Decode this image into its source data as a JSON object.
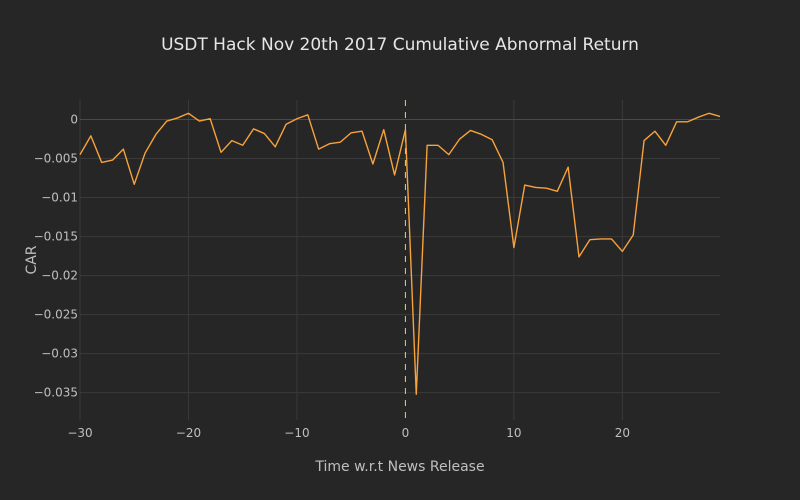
{
  "chart_data": {
    "type": "line",
    "title": "USDT Hack Nov 20th 2017 Cumulative Abnormal Return",
    "xlabel": "Time w.r.t News Release",
    "ylabel": "CAR",
    "xlim": [
      -30,
      29
    ],
    "ylim": [
      -0.0385,
      0.0025
    ],
    "x_ticks": [
      -30,
      -20,
      -10,
      0,
      10,
      20
    ],
    "x_tick_labels": [
      "−30",
      "−20",
      "−10",
      "0",
      "10",
      "20"
    ],
    "y_ticks": [
      0,
      -0.005,
      -0.01,
      -0.015,
      -0.02,
      -0.025,
      -0.03,
      -0.035
    ],
    "y_tick_labels": [
      "0",
      "−0.005",
      "−0.01",
      "−0.015",
      "−0.02",
      "−0.025",
      "−0.03",
      "−0.035"
    ],
    "grid": true,
    "series": [
      {
        "color": "#f7a23c",
        "x": [
          -30,
          -29,
          -28,
          -27,
          -26,
          -25,
          -24,
          -23,
          -22,
          -21,
          -20,
          -19,
          -18,
          -17,
          -16,
          -15,
          -14,
          -13,
          -12,
          -11,
          -10,
          -9,
          -8,
          -7,
          -6,
          -5,
          -4,
          -3,
          -2,
          -1,
          0,
          1,
          2,
          3,
          4,
          5,
          6,
          7,
          8,
          9,
          10,
          11,
          12,
          13,
          14,
          15,
          16,
          17,
          18,
          19,
          20,
          21,
          22,
          23,
          24,
          25,
          26,
          27,
          28,
          29
        ],
        "values": [
          -0.0045,
          -0.0021,
          -0.0055,
          -0.0052,
          -0.0038,
          -0.0083,
          -0.0043,
          -0.0019,
          -0.0002,
          0.0002,
          0.0008,
          -0.0002,
          0.0001,
          -0.0042,
          -0.0027,
          -0.0033,
          -0.0012,
          -0.0018,
          -0.0035,
          -0.0006,
          0.0001,
          0.0006,
          -0.0038,
          -0.0031,
          -0.0029,
          -0.0017,
          -0.0015,
          -0.0057,
          -0.0013,
          -0.0071,
          -0.0013,
          -0.0352,
          -0.0033,
          -0.0033,
          -0.0045,
          -0.0025,
          -0.0014,
          -0.0019,
          -0.0026,
          -0.0055,
          -0.0164,
          -0.0084,
          -0.0087,
          -0.0088,
          -0.0092,
          -0.0061,
          -0.0176,
          -0.0154,
          -0.0153,
          -0.0153,
          -0.0169,
          -0.0148,
          -0.0027,
          -0.0015,
          -0.0033,
          -0.0003,
          -0.0003,
          0.0003,
          0.0008,
          0.0004
        ]
      }
    ],
    "vline": {
      "x": 0,
      "color": "#e6e600",
      "style": "dashed"
    }
  }
}
